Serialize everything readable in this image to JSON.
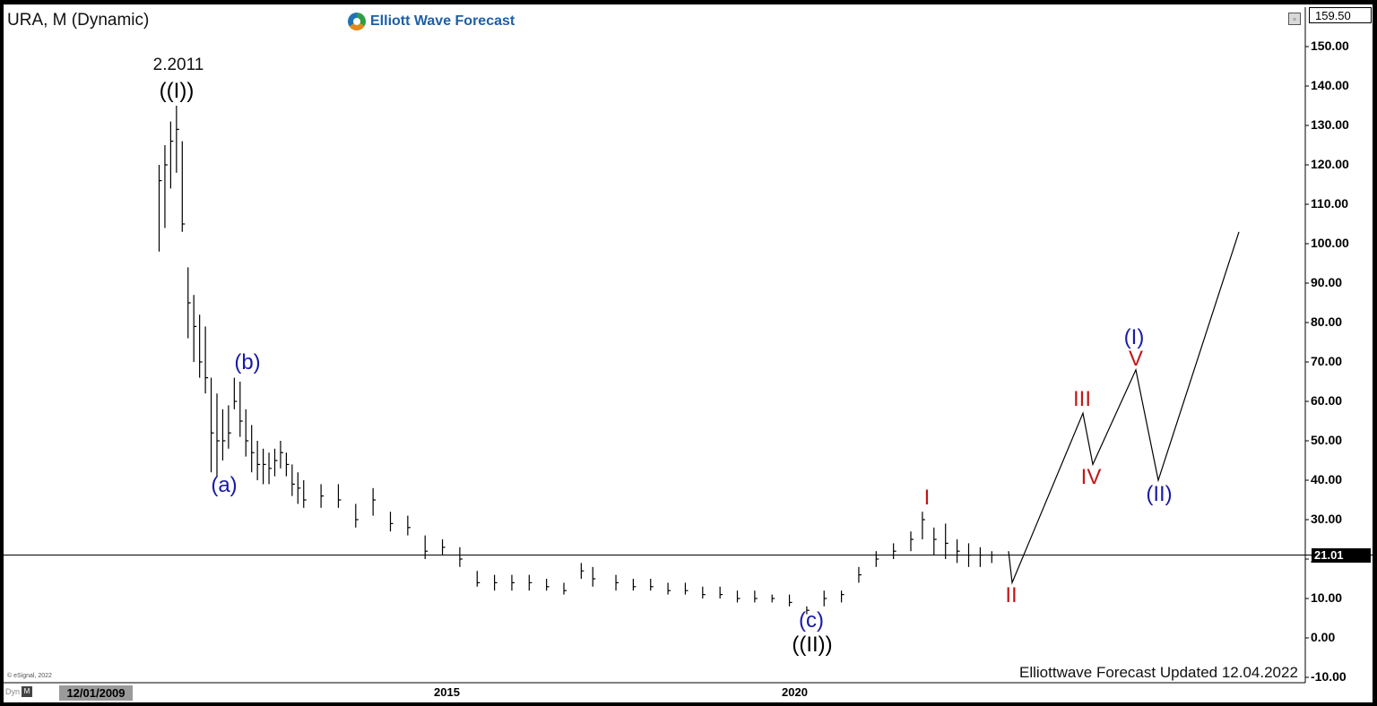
{
  "header": {
    "symbol_title": "URA, M (Dynamic)",
    "brand": "Elliott Wave Forecast",
    "brand_colors": [
      "#2e9e44",
      "#e08a1e",
      "#1e73b8"
    ]
  },
  "price_axis": {
    "top_value": "159.50",
    "last_price": "21.01",
    "ticks": [
      "150.00",
      "140.00",
      "130.00",
      "120.00",
      "110.00",
      "100.00",
      "90.00",
      "80.00",
      "70.00",
      "60.00",
      "50.00",
      "40.00",
      "30.00",
      "20.00",
      "10.00",
      "0.00",
      "-10.00"
    ]
  },
  "time_axis": {
    "start_date": "12/01/2009",
    "ticks": [
      "2015",
      "2020"
    ]
  },
  "footer": {
    "dyn_label": "Dyn",
    "dyn_button": "M",
    "copyright": "© eSignal, 2022",
    "updated_note": "Elliottwave Forecast Updated 12.04.2022"
  },
  "chart_data": {
    "type": "ohlc",
    "title": "URA, M (Dynamic)",
    "ylim": [
      -10,
      159.5
    ],
    "y_ticks": [
      150,
      140,
      130,
      120,
      110,
      100,
      90,
      80,
      70,
      60,
      50,
      40,
      30,
      20,
      10,
      0,
      -10
    ],
    "x_ticks": [
      "2015",
      "2020"
    ],
    "horizontal_line": 21.01,
    "bar_color": "#000000",
    "series": [
      {
        "x": [
          "2010-11",
          "2010-12",
          "2011-01",
          "2011-02",
          "2011-03",
          "2011-04",
          "2011-05",
          "2011-06",
          "2011-07",
          "2011-08",
          "2011-09",
          "2011-10",
          "2011-11",
          "2011-12",
          "2012-01",
          "2012-02",
          "2012-03",
          "2012-04",
          "2012-05",
          "2012-06",
          "2012-07",
          "2012-08",
          "2012-09",
          "2012-10",
          "2012-11",
          "2012-12",
          "2013-03",
          "2013-06",
          "2013-09",
          "2013-12",
          "2014-03",
          "2014-06",
          "2014-09",
          "2014-12",
          "2015-03",
          "2015-06",
          "2015-09",
          "2015-12",
          "2016-03",
          "2016-06",
          "2016-09",
          "2016-12",
          "2017-02",
          "2017-06",
          "2017-09",
          "2017-12",
          "2018-03",
          "2018-06",
          "2018-09",
          "2018-12",
          "2019-03",
          "2019-06",
          "2019-09",
          "2019-12",
          "2020-03",
          "2020-06",
          "2020-09",
          "2020-12",
          "2021-03",
          "2021-06",
          "2021-09",
          "2021-11",
          "2022-01",
          "2022-03",
          "2022-05",
          "2022-07",
          "2022-09",
          "2022-11"
        ],
        "high": [
          120,
          125,
          131,
          135,
          126,
          94,
          87,
          82,
          79,
          66,
          62,
          58,
          59,
          66,
          65,
          58,
          54,
          50,
          48,
          47,
          48,
          50,
          47,
          44,
          42,
          40,
          39,
          39,
          34,
          38,
          32,
          31,
          26,
          25,
          23,
          17,
          16,
          16,
          16,
          15,
          14,
          19,
          18,
          16,
          15,
          15,
          14,
          14,
          13,
          13,
          12,
          12,
          11,
          11,
          8,
          12,
          12,
          18,
          22,
          24,
          27,
          32,
          28,
          29,
          25,
          24,
          23,
          22
        ],
        "low": [
          98,
          104,
          114,
          118,
          103,
          76,
          70,
          66,
          62,
          42,
          41,
          45,
          48,
          58,
          51,
          46,
          42,
          40,
          39,
          39,
          41,
          43,
          41,
          36,
          34,
          33,
          33,
          33,
          28,
          31,
          27,
          26,
          20,
          21,
          18,
          13,
          12,
          12,
          12,
          12,
          11,
          15,
          13,
          12,
          12,
          12,
          11,
          11,
          10,
          10,
          9,
          9,
          9,
          8,
          6,
          8,
          9,
          14,
          18,
          20,
          22,
          25,
          21,
          20,
          19,
          18,
          18,
          19
        ],
        "close": [
          116,
          120,
          126,
          129,
          105,
          85,
          79,
          70,
          66,
          52,
          50,
          50,
          52,
          60,
          55,
          50,
          47,
          44,
          44,
          43,
          45,
          47,
          44,
          39,
          38,
          35,
          36,
          35,
          30,
          35,
          29,
          28,
          22,
          23,
          20,
          14,
          14,
          14,
          14,
          13,
          12,
          17,
          15,
          14,
          13,
          13,
          12,
          12,
          11,
          11,
          10,
          10,
          10,
          9,
          7,
          10,
          11,
          16,
          20,
          22,
          25,
          30,
          25,
          24,
          22,
          21,
          21,
          21.01
        ]
      }
    ],
    "projection_path": {
      "points": [
        {
          "x": "2022-11",
          "y": 22
        },
        {
          "label": "II",
          "y": 14
        },
        {
          "label": "III",
          "y": 57
        },
        {
          "label": "IV",
          "y": 44
        },
        {
          "label": "V / (I)",
          "y": 68
        },
        {
          "label": "(II)",
          "y": 40
        },
        {
          "label": "end",
          "y": 103
        }
      ]
    },
    "annotations": [
      {
        "text": "2.2011",
        "color": "#111111",
        "style": "date",
        "at": {
          "x": "2011-02",
          "y": 134
        }
      },
      {
        "text": "((I))",
        "color": "#000000",
        "style": "black",
        "at": {
          "x": "2011-02",
          "y": 134
        }
      },
      {
        "text": "(a)",
        "color": "#1a1aa6",
        "style": "blue",
        "at": {
          "x": "2011-08",
          "y": 42
        }
      },
      {
        "text": "(b)",
        "color": "#1a1aa6",
        "style": "blue",
        "at": {
          "x": "2011-12",
          "y": 66
        }
      },
      {
        "text": "(c)",
        "color": "#1a1aa6",
        "style": "blue",
        "at": {
          "x": "2020-03",
          "y": 6
        }
      },
      {
        "text": "((II))",
        "color": "#000000",
        "style": "black",
        "at": {
          "x": "2020-03",
          "y": 6
        }
      },
      {
        "text": "I",
        "color": "#c01818",
        "style": "red",
        "at": {
          "x": "2021-11",
          "y": 32
        }
      },
      {
        "text": "II",
        "color": "#c01818",
        "style": "red",
        "at": {
          "x": "2022-12",
          "y": 14
        }
      },
      {
        "text": "III",
        "color": "#c01818",
        "style": "red",
        "at": {
          "x": "proj",
          "y": 57
        }
      },
      {
        "text": "IV",
        "color": "#c01818",
        "style": "red",
        "at": {
          "x": "proj",
          "y": 44
        }
      },
      {
        "text": "V",
        "color": "#c01818",
        "style": "red",
        "at": {
          "x": "proj",
          "y": 68
        }
      },
      {
        "text": "(I)",
        "color": "#1a1aa6",
        "style": "blue",
        "at": {
          "x": "proj",
          "y": 68
        }
      },
      {
        "text": "(II)",
        "color": "#1a1aa6",
        "style": "blue",
        "at": {
          "x": "proj",
          "y": 40
        }
      }
    ]
  }
}
